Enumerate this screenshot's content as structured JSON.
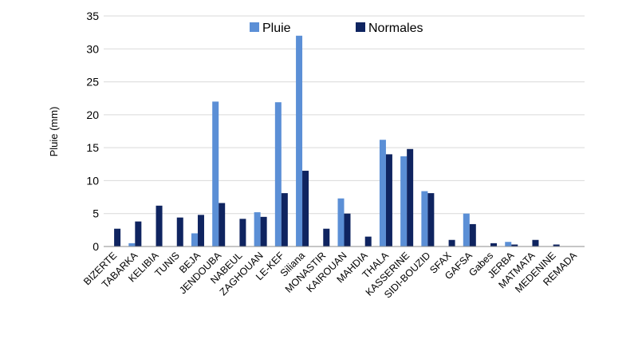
{
  "chart_data": {
    "type": "bar",
    "ylabel": "Pluie (mm)",
    "ylim": [
      0,
      35
    ],
    "yticks": [
      0,
      5,
      10,
      15,
      20,
      25,
      30,
      35
    ],
    "grid": true,
    "legend": "top",
    "categories": [
      "BIZERTE",
      "TABARKA",
      "KELIBIA",
      "TUNIS",
      "BEJA",
      "JENDOUBA",
      "NABEUL",
      "ZAGHOUAN",
      "LE-KEF",
      "Siliana",
      "MONASTIR",
      "KAIROUAN",
      "MAHDIA",
      "THALA",
      "KASSERINE",
      "SIDI-BOUZID",
      "SFAX",
      "GAFSA",
      "Gabes",
      "JERBA",
      "MATMATA",
      "MEDENINE",
      "REMADA"
    ],
    "series": [
      {
        "name": "Pluie",
        "color": "#5b8fd6",
        "values": [
          0,
          0.5,
          0,
          0,
          2,
          22,
          0,
          5.2,
          21.9,
          32,
          0,
          7.3,
          0,
          16.2,
          13.7,
          8.4,
          0,
          5,
          0,
          0.7,
          0,
          0,
          0
        ]
      },
      {
        "name": "Normales",
        "color": "#0f2460",
        "values": [
          2.7,
          3.8,
          6.2,
          4.4,
          4.8,
          6.6,
          4.2,
          4.5,
          8.1,
          11.5,
          2.7,
          5,
          1.5,
          14,
          14.8,
          8.1,
          1,
          3.4,
          0.5,
          0.3,
          1,
          0.3,
          0
        ]
      }
    ]
  }
}
